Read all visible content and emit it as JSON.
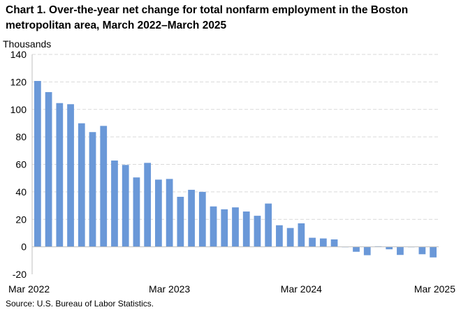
{
  "chart_data": {
    "type": "bar",
    "title": "Chart 1. Over-the-year net change for total nonfarm employment in the Boston metropolitan area, March 2022–March 2025",
    "ylabel": "Thousands",
    "xlabel": "",
    "source": "Source: U.S. Bureau of Labor Statistics.",
    "categories": [
      "Mar 2022",
      "Apr 2022",
      "May 2022",
      "Jun 2022",
      "Jul 2022",
      "Aug 2022",
      "Sep 2022",
      "Oct 2022",
      "Nov 2022",
      "Dec 2022",
      "Jan 2023",
      "Feb 2023",
      "Mar 2023",
      "Apr 2023",
      "May 2023",
      "Jun 2023",
      "Jul 2023",
      "Aug 2023",
      "Sep 2023",
      "Oct 2023",
      "Nov 2023",
      "Dec 2023",
      "Jan 2024",
      "Feb 2024",
      "Mar 2024",
      "Apr 2024",
      "May 2024",
      "Jun 2024",
      "Jul 2024",
      "Aug 2024",
      "Sep 2024",
      "Oct 2024",
      "Nov 2024",
      "Dec 2024",
      "Jan 2025",
      "Feb 2025",
      "Mar 2025"
    ],
    "x_tick_labels": [
      "Mar 2022",
      "Mar 2023",
      "Mar 2024",
      "Mar 2025"
    ],
    "values": [
      120.7,
      112.6,
      104.6,
      103.8,
      89.9,
      83.5,
      88.0,
      62.8,
      59.6,
      50.5,
      61.1,
      48.9,
      49.4,
      36.4,
      41.5,
      40.0,
      29.4,
      27.3,
      28.7,
      25.7,
      22.6,
      31.5,
      15.7,
      13.7,
      17.1,
      6.6,
      6.1,
      5.4,
      -0.3,
      -3.6,
      -6.1,
      0.4,
      -1.8,
      -5.9,
      0.0,
      -5.4,
      -7.7
    ],
    "ylim": [
      -20,
      140
    ],
    "yticks": [
      -20,
      0,
      20,
      40,
      60,
      80,
      100,
      120,
      140
    ],
    "grid": true,
    "bar_color": "#6a98d8",
    "grid_color": "#d9d9d9"
  }
}
